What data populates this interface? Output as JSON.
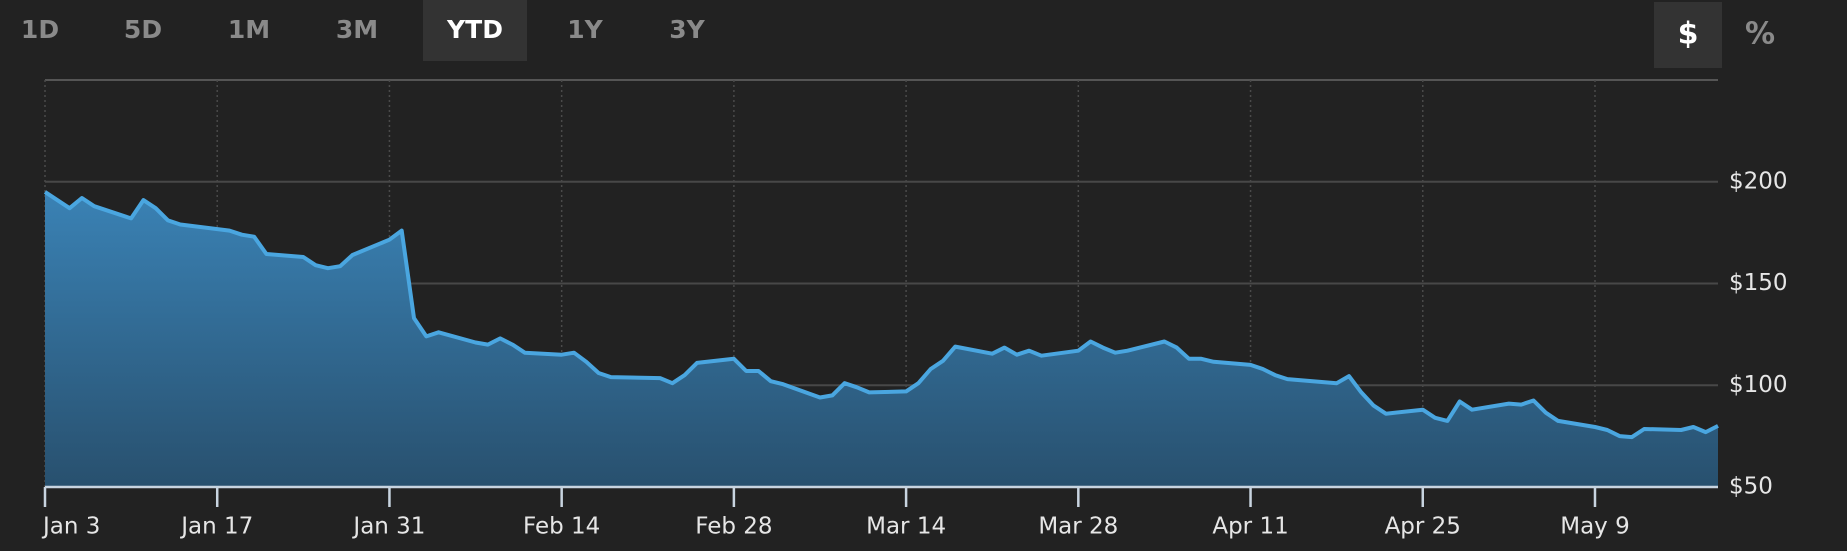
{
  "range_buttons": {
    "items": [
      "1D",
      "5D",
      "1M",
      "3M",
      "YTD",
      "1Y",
      "3Y"
    ],
    "active": 4
  },
  "unit_buttons": {
    "items": [
      "$",
      "%"
    ],
    "active": 0
  },
  "chart_data": {
    "type": "area",
    "x": [
      "Jan 3",
      "Jan 5",
      "Jan 6",
      "Jan 7",
      "Jan 10",
      "Jan 11",
      "Jan 12",
      "Jan 13",
      "Jan 14",
      "Jan 18",
      "Jan 19",
      "Jan 20",
      "Jan 21",
      "Jan 24",
      "Jan 25",
      "Jan 26",
      "Jan 27",
      "Jan 28",
      "Jan 31",
      "Feb 1",
      "Feb 2",
      "Feb 3",
      "Feb 4",
      "Feb 7",
      "Feb 8",
      "Feb 9",
      "Feb 10",
      "Feb 11",
      "Feb 14",
      "Feb 15",
      "Feb 16",
      "Feb 17",
      "Feb 18",
      "Feb 22",
      "Feb 23",
      "Feb 24",
      "Feb 25",
      "Feb 28",
      "Mar 1",
      "Mar 2",
      "Mar 3",
      "Mar 4",
      "Mar 7",
      "Mar 8",
      "Mar 9",
      "Mar 10",
      "Mar 11",
      "Mar 14",
      "Mar 15",
      "Mar 16",
      "Mar 17",
      "Mar 18",
      "Mar 21",
      "Mar 22",
      "Mar 23",
      "Mar 24",
      "Mar 25",
      "Mar 28",
      "Mar 29",
      "Mar 30",
      "Mar 31",
      "Apr 1",
      "Apr 4",
      "Apr 5",
      "Apr 6",
      "Apr 7",
      "Apr 8",
      "Apr 11",
      "Apr 12",
      "Apr 13",
      "Apr 14",
      "Apr 18",
      "Apr 19",
      "Apr 20",
      "Apr 21",
      "Apr 22",
      "Apr 25",
      "Apr 26",
      "Apr 27",
      "Apr 28",
      "Apr 29",
      "May 2",
      "May 3",
      "May 4",
      "May 5",
      "May 6",
      "May 9",
      "May 10",
      "May 11",
      "May 12",
      "May 13",
      "May 16",
      "May 17",
      "May 18",
      "May 19"
    ],
    "series": [
      {
        "color": "#4aa6e0",
        "values": [
          195,
          187,
          192,
          188,
          182,
          191,
          187,
          181,
          179,
          176,
          174,
          173,
          164.5,
          163,
          159,
          157.5,
          158.5,
          164,
          171.5,
          176,
          133,
          124,
          126,
          121,
          120,
          123,
          120,
          116,
          115,
          116,
          111.5,
          106,
          104,
          103.5,
          101,
          105,
          111,
          113,
          107,
          107,
          102,
          100.5,
          94,
          95,
          101,
          99,
          96.5,
          97,
          101,
          108,
          112,
          119,
          115.5,
          118.5,
          115,
          117,
          114.5,
          117,
          121.5,
          118.5,
          116,
          117,
          121.5,
          118.5,
          113,
          113,
          111.5,
          110,
          108,
          105,
          103,
          101,
          104.5,
          96.5,
          90,
          86,
          88,
          84,
          82.5,
          92,
          88,
          91,
          90.5,
          92.5,
          86.5,
          82.5,
          79.5,
          78,
          75,
          74.5,
          78.5,
          78,
          79.5,
          77,
          80
        ]
      }
    ],
    "xlim": [
      "Jan 3",
      "May 19"
    ],
    "xticks": [
      "Jan 3",
      "Jan 17",
      "Jan 31",
      "Feb 14",
      "Feb 28",
      "Mar 14",
      "Mar 28",
      "Apr 11",
      "Apr 25",
      "May 9"
    ],
    "ylim": [
      50,
      250
    ],
    "yticks": [
      {
        "value": 50,
        "label": "$50"
      },
      {
        "value": 100,
        "label": "$100"
      },
      {
        "value": 150,
        "label": "$150"
      },
      {
        "value": 200,
        "label": "$200"
      }
    ],
    "grid": true
  }
}
